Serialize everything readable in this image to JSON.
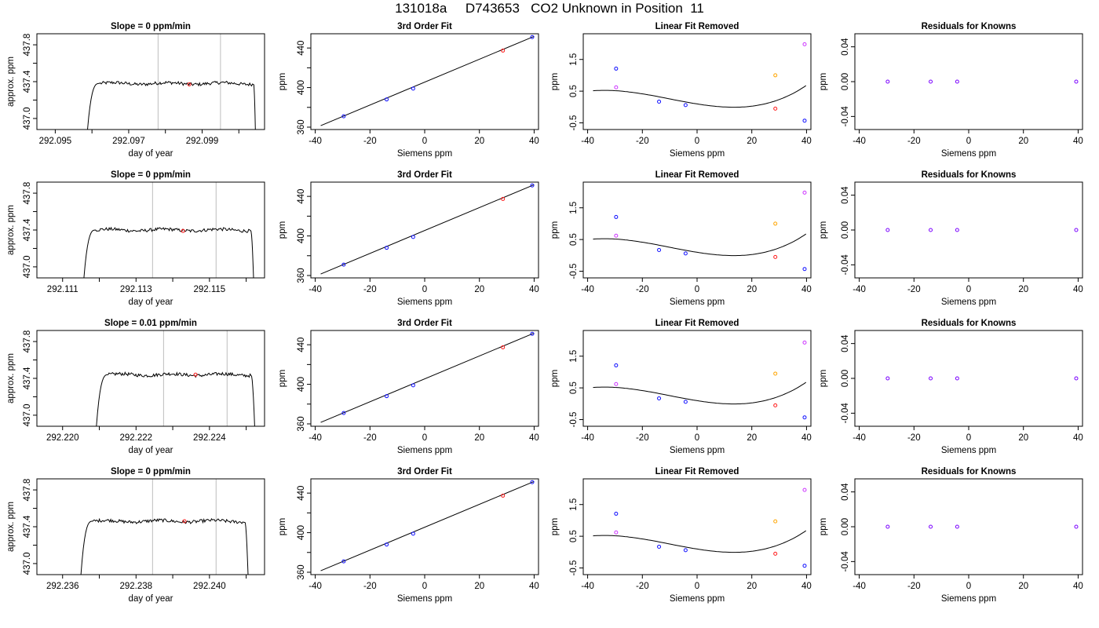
{
  "page_title": "131018a     D743653   CO2 Unknown in Position  11",
  "colors": {
    "frame": "#000000",
    "line": "#000000",
    "vline": "#bdbdbd",
    "known": "#1010ff",
    "unknown": "#ff1a1a",
    "orange": "#ffa500",
    "magenta": "#cc33ff",
    "purple": "#7a00ff"
  },
  "chart_data": [
    {
      "panel": "trace",
      "row": 1,
      "type": "line",
      "title": "Slope =  0  ppm/min",
      "xlabel": "day of year",
      "ylabel": "approx. ppm",
      "xlim": [
        292.0945,
        292.1007
      ],
      "ylim": [
        436.88,
        437.92
      ],
      "xticks": [
        292.095,
        292.096,
        292.097,
        292.098,
        292.099,
        292.1
      ],
      "xtick_labels": [
        "292.095",
        "",
        "292.097",
        "",
        "292.099",
        ""
      ],
      "yticks": [
        437.0,
        437.2,
        437.4,
        437.6,
        437.8
      ],
      "ytick_labels": [
        "437.0",
        "",
        "437.4",
        "",
        "437.8"
      ],
      "ramp": {
        "x_start": 292.09588,
        "x_rise": 292.09615,
        "x_flat": 292.0962,
        "x_end": 292.10045,
        "x_fall": 292.1004,
        "start_y": 436.88,
        "end_y": 436.88
      },
      "plateau": 437.38,
      "vlines": [
        292.0978,
        292.0995
      ],
      "unknown_point": {
        "x": 292.09865,
        "y": 437.37
      }
    },
    {
      "panel": "fit",
      "row": 1,
      "type": "scatter",
      "title": "3rd Order Fit",
      "xlabel": "Siemens ppm",
      "ylabel": "ppm",
      "xlim": [
        -41.6,
        41.6
      ],
      "ylim": [
        357.6,
        454.4
      ],
      "xticks": [
        -40,
        -20,
        0,
        20,
        40
      ],
      "yticks": [
        360,
        380,
        400,
        420,
        440
      ],
      "ytick_labels": [
        "360",
        "",
        "400",
        "",
        "440"
      ],
      "known": {
        "x": [
          -29.6,
          -13.9,
          -4.2,
          39.3
        ],
        "y": [
          371.0,
          388.0,
          399.0,
          451.0
        ]
      },
      "unknown": {
        "x": [
          28.6
        ],
        "y": [
          437.4
        ]
      },
      "fit_line": {
        "x": [
          -38.0,
          40.0
        ],
        "y": [
          361.5,
          451.8
        ]
      }
    },
    {
      "panel": "linear_removed",
      "row": 1,
      "type": "scatter",
      "title": "Linear Fit Removed",
      "xlabel": "Siemens ppm",
      "ylabel": "ppm",
      "xlim": [
        -41.6,
        41.6
      ],
      "ylim": [
        -0.71,
        2.31
      ],
      "xticks": [
        -40,
        -20,
        0,
        20,
        40
      ],
      "yticks": [
        -0.5,
        0.5,
        1.5
      ],
      "ytick_labels": [
        "-0.5",
        "0.5",
        "1.5"
      ],
      "curve": {
        "a": 0.0975,
        "b": -0.01375,
        "c": 0.0003083,
        "d": 1.008e-05,
        "x_from": -38.0,
        "x_to": 39.8
      },
      "known": {
        "x": [
          -29.6,
          -13.9,
          -4.2,
          39.3
        ],
        "y": [
          1.21,
          0.17,
          0.06,
          -0.43
        ]
      },
      "unknown": {
        "x": [
          28.6
        ],
        "y": [
          -0.05
        ]
      },
      "extra_orange": {
        "x": [
          28.6
        ],
        "y": [
          1.0
        ]
      },
      "extra_magenta": {
        "x": [
          -29.6,
          39.3
        ],
        "y": [
          0.62,
          1.98
        ]
      }
    },
    {
      "panel": "residuals",
      "row": 1,
      "type": "scatter",
      "title": "Residuals for Knowns",
      "xlabel": "Siemens ppm",
      "ylabel": "ppm",
      "xlim": [
        -41.6,
        41.6
      ],
      "ylim": [
        -0.055,
        0.055
      ],
      "xticks": [
        -40,
        -20,
        0,
        20,
        40
      ],
      "yticks": [
        -0.04,
        0.0,
        0.04
      ],
      "ytick_labels": [
        "-0.04",
        "0.00",
        "0.04"
      ],
      "points": {
        "x": [
          -29.6,
          -13.9,
          -4.2,
          39.3
        ],
        "y": [
          0.0,
          0.0,
          0.0,
          0.0
        ]
      }
    },
    {
      "panel": "trace",
      "row": 2,
      "type": "line",
      "title": "Slope =  0  ppm/min",
      "xlabel": "day of year",
      "ylabel": "approx. ppm",
      "xlim": [
        292.1103,
        292.1165
      ],
      "ylim": [
        436.88,
        437.92
      ],
      "xticks": [
        292.111,
        292.112,
        292.113,
        292.114,
        292.115,
        292.116
      ],
      "xtick_labels": [
        "292.111",
        "",
        "292.113",
        "",
        "292.115",
        ""
      ],
      "yticks": [
        437.0,
        437.2,
        437.4,
        437.6,
        437.8
      ],
      "ytick_labels": [
        "437.0",
        "",
        "437.4",
        "",
        "437.8"
      ],
      "ramp": {
        "x_start": 292.11158,
        "x_rise": 292.11185,
        "x_flat": 292.1119,
        "x_end": 292.1162,
        "x_fall": 292.11612,
        "start_y": 436.88,
        "end_y": 436.88
      },
      "plateau": 437.4,
      "vlines": [
        292.11345,
        292.11518
      ],
      "unknown_point": {
        "x": 292.11428,
        "y": 437.39
      }
    },
    {
      "panel": "fit",
      "row": 2,
      "type": "scatter",
      "title": "3rd Order Fit",
      "xlabel": "Siemens ppm",
      "ylabel": "ppm",
      "xlim": [
        -41.6,
        41.6
      ],
      "ylim": [
        357.6,
        454.4
      ],
      "xticks": [
        -40,
        -20,
        0,
        20,
        40
      ],
      "yticks": [
        360,
        380,
        400,
        420,
        440
      ],
      "ytick_labels": [
        "360",
        "",
        "400",
        "",
        "440"
      ],
      "known": {
        "x": [
          -29.6,
          -13.9,
          -4.2,
          39.3
        ],
        "y": [
          371.0,
          388.0,
          399.0,
          451.0
        ]
      },
      "unknown": {
        "x": [
          28.6
        ],
        "y": [
          437.4
        ]
      },
      "fit_line": {
        "x": [
          -38.0,
          40.0
        ],
        "y": [
          361.5,
          451.8
        ]
      }
    },
    {
      "panel": "linear_removed",
      "row": 2,
      "type": "scatter",
      "title": "Linear Fit Removed",
      "xlabel": "Siemens ppm",
      "ylabel": "ppm",
      "xlim": [
        -41.6,
        41.6
      ],
      "ylim": [
        -0.71,
        2.31
      ],
      "xticks": [
        -40,
        -20,
        0,
        20,
        40
      ],
      "yticks": [
        -0.5,
        0.5,
        1.5
      ],
      "ytick_labels": [
        "-0.5",
        "0.5",
        "1.5"
      ],
      "curve": {
        "a": 0.0975,
        "b": -0.01375,
        "c": 0.0003083,
        "d": 1.008e-05,
        "x_from": -38.0,
        "x_to": 39.8
      },
      "known": {
        "x": [
          -29.6,
          -13.9,
          -4.2,
          39.3
        ],
        "y": [
          1.21,
          0.17,
          0.06,
          -0.43
        ]
      },
      "unknown": {
        "x": [
          28.6
        ],
        "y": [
          -0.05
        ]
      },
      "extra_orange": {
        "x": [
          28.6
        ],
        "y": [
          1.0
        ]
      },
      "extra_magenta": {
        "x": [
          -29.6,
          39.3
        ],
        "y": [
          0.62,
          1.98
        ]
      }
    },
    {
      "panel": "residuals",
      "row": 2,
      "type": "scatter",
      "title": "Residuals for Knowns",
      "xlabel": "Siemens ppm",
      "ylabel": "ppm",
      "xlim": [
        -41.6,
        41.6
      ],
      "ylim": [
        -0.055,
        0.055
      ],
      "xticks": [
        -40,
        -20,
        0,
        20,
        40
      ],
      "yticks": [
        -0.04,
        0.0,
        0.04
      ],
      "ytick_labels": [
        "-0.04",
        "0.00",
        "0.04"
      ],
      "points": {
        "x": [
          -29.6,
          -13.9,
          -4.2,
          39.3
        ],
        "y": [
          0.0,
          0.0,
          0.0,
          0.0
        ]
      }
    },
    {
      "panel": "trace",
      "row": 3,
      "type": "line",
      "title": "Slope =  0.01  ppm/min",
      "xlabel": "day of year",
      "ylabel": "approx. ppm",
      "xlim": [
        292.2193,
        292.2255
      ],
      "ylim": [
        436.88,
        437.92
      ],
      "xticks": [
        292.22,
        292.221,
        292.222,
        292.223,
        292.224,
        292.225
      ],
      "xtick_labels": [
        "292.220",
        "",
        "292.222",
        "",
        "292.224",
        ""
      ],
      "yticks": [
        437.0,
        437.2,
        437.4,
        437.6,
        437.8
      ],
      "ytick_labels": [
        "437.0",
        "",
        "437.4",
        "",
        "437.8"
      ],
      "ramp": {
        "x_start": 292.22092,
        "x_rise": 292.22118,
        "x_flat": 292.22124,
        "x_end": 292.22523,
        "x_fall": 292.22513,
        "start_y": 436.88,
        "end_y": 436.88
      },
      "plateau": 437.44,
      "vlines": [
        292.22275,
        292.22448
      ],
      "unknown_point": {
        "x": 292.22362,
        "y": 437.44
      }
    },
    {
      "panel": "fit",
      "row": 3,
      "type": "scatter",
      "title": "3rd Order Fit",
      "xlabel": "Siemens ppm",
      "ylabel": "ppm",
      "xlim": [
        -41.6,
        41.6
      ],
      "ylim": [
        357.6,
        454.4
      ],
      "xticks": [
        -40,
        -20,
        0,
        20,
        40
      ],
      "yticks": [
        360,
        380,
        400,
        420,
        440
      ],
      "ytick_labels": [
        "360",
        "",
        "400",
        "",
        "440"
      ],
      "known": {
        "x": [
          -29.6,
          -13.9,
          -4.2,
          39.3
        ],
        "y": [
          371.0,
          388.0,
          399.0,
          451.0
        ]
      },
      "unknown": {
        "x": [
          28.6
        ],
        "y": [
          437.4
        ]
      },
      "fit_line": {
        "x": [
          -38.0,
          40.0
        ],
        "y": [
          361.5,
          451.8
        ]
      }
    },
    {
      "panel": "linear_removed",
      "row": 3,
      "type": "scatter",
      "title": "Linear Fit Removed",
      "xlabel": "Siemens ppm",
      "ylabel": "ppm",
      "xlim": [
        -41.6,
        41.6
      ],
      "ylim": [
        -0.71,
        2.31
      ],
      "xticks": [
        -40,
        -20,
        0,
        20,
        40
      ],
      "yticks": [
        -0.5,
        0.5,
        1.5
      ],
      "ytick_labels": [
        "-0.5",
        "0.5",
        "1.5"
      ],
      "curve": {
        "a": 0.0975,
        "b": -0.01375,
        "c": 0.0003083,
        "d": 1.008e-05,
        "x_from": -38.0,
        "x_to": 39.8
      },
      "known": {
        "x": [
          -29.6,
          -13.9,
          -4.2,
          39.3
        ],
        "y": [
          1.21,
          0.17,
          0.06,
          -0.43
        ]
      },
      "unknown": {
        "x": [
          28.6
        ],
        "y": [
          -0.05
        ]
      },
      "extra_orange": {
        "x": [
          28.6
        ],
        "y": [
          0.95
        ]
      },
      "extra_magenta": {
        "x": [
          -29.6,
          39.3
        ],
        "y": [
          0.62,
          1.93
        ]
      }
    },
    {
      "panel": "residuals",
      "row": 3,
      "type": "scatter",
      "title": "Residuals for Knowns",
      "xlabel": "Siemens ppm",
      "ylabel": "ppm",
      "xlim": [
        -41.6,
        41.6
      ],
      "ylim": [
        -0.055,
        0.055
      ],
      "xticks": [
        -40,
        -20,
        0,
        20,
        40
      ],
      "yticks": [
        -0.04,
        0.0,
        0.04
      ],
      "ytick_labels": [
        "-0.04",
        "0.00",
        "0.04"
      ],
      "points": {
        "x": [
          -29.6,
          -13.9,
          -4.2,
          39.3
        ],
        "y": [
          0.0,
          0.0,
          0.0,
          0.0
        ]
      }
    },
    {
      "panel": "trace",
      "row": 4,
      "type": "line",
      "title": "Slope =  0  ppm/min",
      "xlabel": "day of year",
      "ylabel": "approx. ppm",
      "xlim": [
        292.2353,
        292.2415
      ],
      "ylim": [
        436.88,
        437.92
      ],
      "xticks": [
        292.236,
        292.237,
        292.238,
        292.239,
        292.24,
        292.241
      ],
      "xtick_labels": [
        "292.236",
        "",
        "292.238",
        "",
        "292.240",
        ""
      ],
      "yticks": [
        437.0,
        437.2,
        437.4,
        437.6,
        437.8
      ],
      "ytick_labels": [
        "437.0",
        "",
        "437.4",
        "",
        "437.8"
      ],
      "ramp": {
        "x_start": 292.2365,
        "x_rise": 292.23676,
        "x_flat": 292.23682,
        "x_end": 292.24105,
        "x_fall": 292.24096,
        "start_y": 436.88,
        "end_y": 436.88
      },
      "plateau": 437.46,
      "vlines": [
        292.23845,
        292.24018
      ],
      "unknown_point": {
        "x": 292.23932,
        "y": 437.46
      }
    },
    {
      "panel": "fit",
      "row": 4,
      "type": "scatter",
      "title": "3rd Order Fit",
      "xlabel": "Siemens ppm",
      "ylabel": "ppm",
      "xlim": [
        -41.6,
        41.6
      ],
      "ylim": [
        357.6,
        454.4
      ],
      "xticks": [
        -40,
        -20,
        0,
        20,
        40
      ],
      "yticks": [
        360,
        380,
        400,
        420,
        440
      ],
      "ytick_labels": [
        "360",
        "",
        "400",
        "",
        "440"
      ],
      "known": {
        "x": [
          -29.6,
          -13.9,
          -4.2,
          39.3
        ],
        "y": [
          371.0,
          388.0,
          399.0,
          451.0
        ]
      },
      "unknown": {
        "x": [
          28.6
        ],
        "y": [
          437.4
        ]
      },
      "fit_line": {
        "x": [
          -38.0,
          40.0
        ],
        "y": [
          361.5,
          451.8
        ]
      }
    },
    {
      "panel": "linear_removed",
      "row": 4,
      "type": "scatter",
      "title": "Linear Fit Removed",
      "xlabel": "Siemens ppm",
      "ylabel": "ppm",
      "xlim": [
        -41.6,
        41.6
      ],
      "ylim": [
        -0.71,
        2.31
      ],
      "xticks": [
        -40,
        -20,
        0,
        20,
        40
      ],
      "yticks": [
        -0.5,
        0.5,
        1.5
      ],
      "ytick_labels": [
        "-0.5",
        "0.5",
        "1.5"
      ],
      "curve": {
        "a": 0.0975,
        "b": -0.01375,
        "c": 0.0003083,
        "d": 1.008e-05,
        "x_from": -38.0,
        "x_to": 39.8
      },
      "known": {
        "x": [
          -29.6,
          -13.9,
          -4.2,
          39.3
        ],
        "y": [
          1.21,
          0.17,
          0.06,
          -0.43
        ]
      },
      "unknown": {
        "x": [
          28.6
        ],
        "y": [
          -0.05
        ]
      },
      "extra_orange": {
        "x": [
          28.6
        ],
        "y": [
          0.97
        ]
      },
      "extra_magenta": {
        "x": [
          -29.6,
          39.3
        ],
        "y": [
          0.62,
          1.96
        ]
      }
    },
    {
      "panel": "residuals",
      "row": 4,
      "type": "scatter",
      "title": "Residuals for Knowns",
      "xlabel": "Siemens ppm",
      "ylabel": "ppm",
      "xlim": [
        -41.6,
        41.6
      ],
      "ylim": [
        -0.055,
        0.055
      ],
      "xticks": [
        -40,
        -20,
        0,
        20,
        40
      ],
      "yticks": [
        -0.04,
        0.0,
        0.04
      ],
      "ytick_labels": [
        "-0.04",
        "0.00",
        "0.04"
      ],
      "points": {
        "x": [
          -29.6,
          -13.9,
          -4.2,
          39.3
        ],
        "y": [
          0.0,
          0.0,
          0.0,
          0.0
        ]
      }
    }
  ]
}
